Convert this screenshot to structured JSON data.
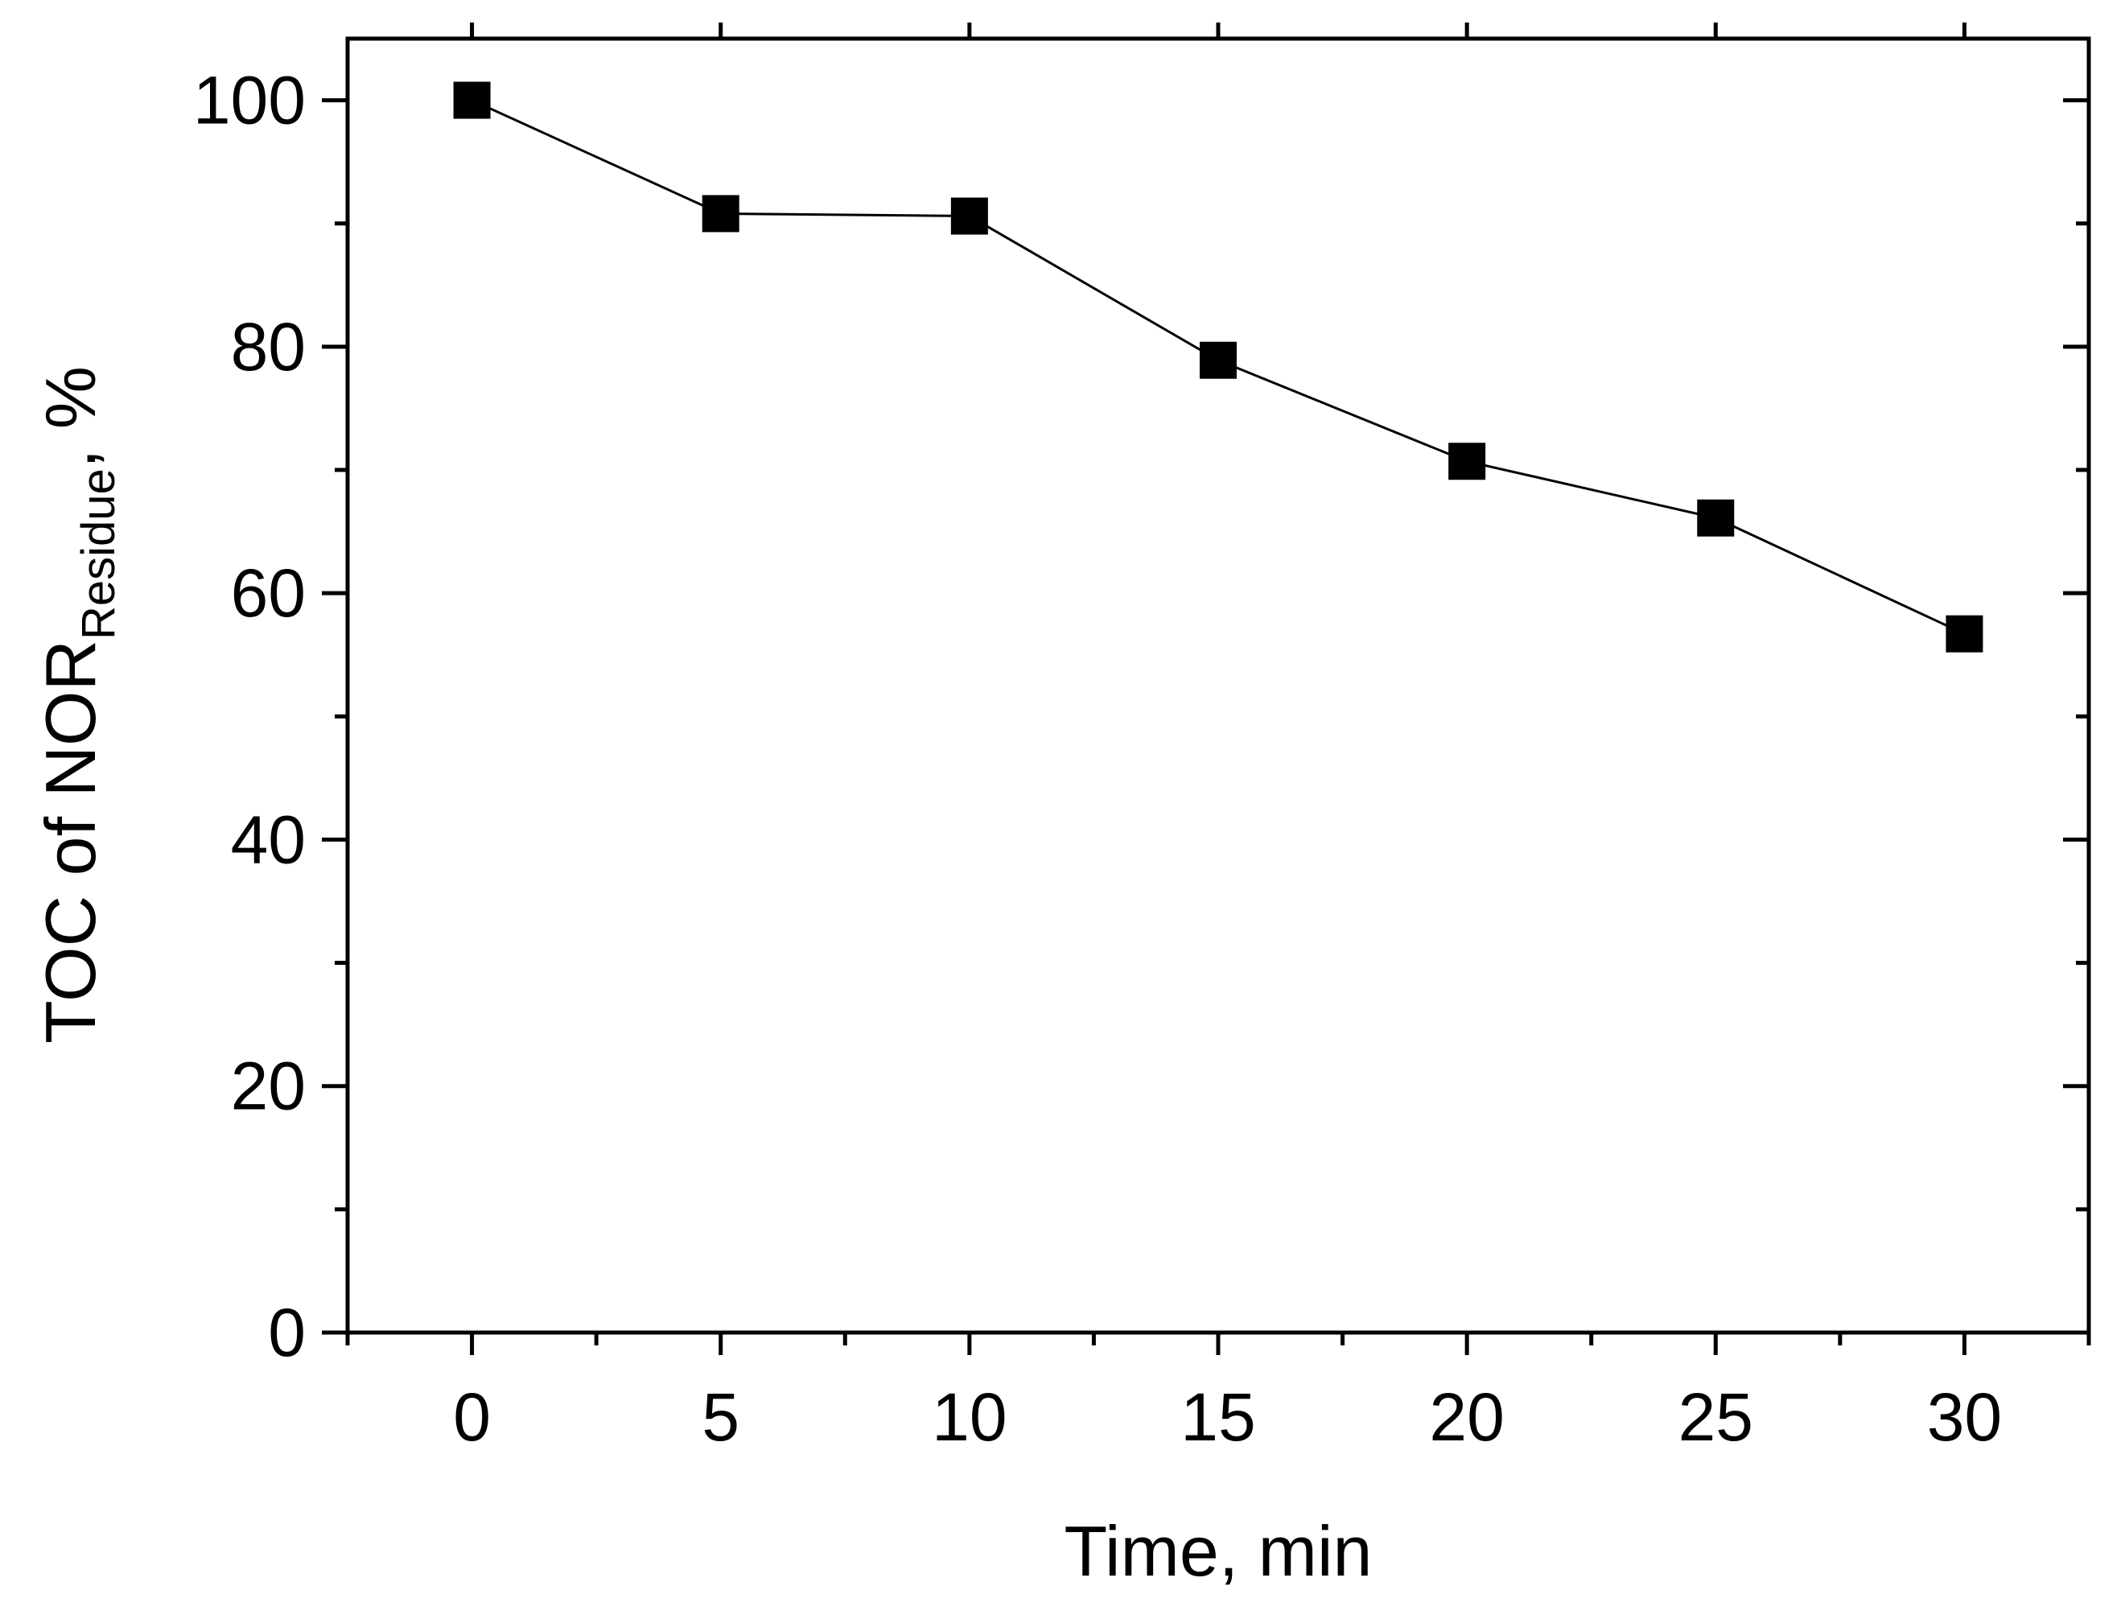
{
  "chart_data": {
    "type": "line",
    "title": "",
    "xlabel": "Time, min",
    "ylabel": {
      "main": "TOC of NOR",
      "subscript": "Residue",
      "suffix": ", %"
    },
    "x": [
      0,
      5,
      10,
      15,
      20,
      25,
      30
    ],
    "series": [
      {
        "marker": "square",
        "values": [
          100,
          90.8,
          90.6,
          78.9,
          70.7,
          66.1,
          56.7
        ]
      }
    ],
    "xlim": [
      -2.5,
      32.5
    ],
    "ylim": [
      0,
      105
    ],
    "xticks": [
      "0",
      "5",
      "10",
      "15",
      "20",
      "25",
      "30"
    ],
    "yticks": [
      "0",
      "20",
      "40",
      "60",
      "80",
      "100"
    ],
    "grid": false,
    "legend": "none",
    "colors": {
      "line": "#000000",
      "marker": "#000000",
      "axis": "#000000",
      "background": "#ffffff"
    }
  }
}
